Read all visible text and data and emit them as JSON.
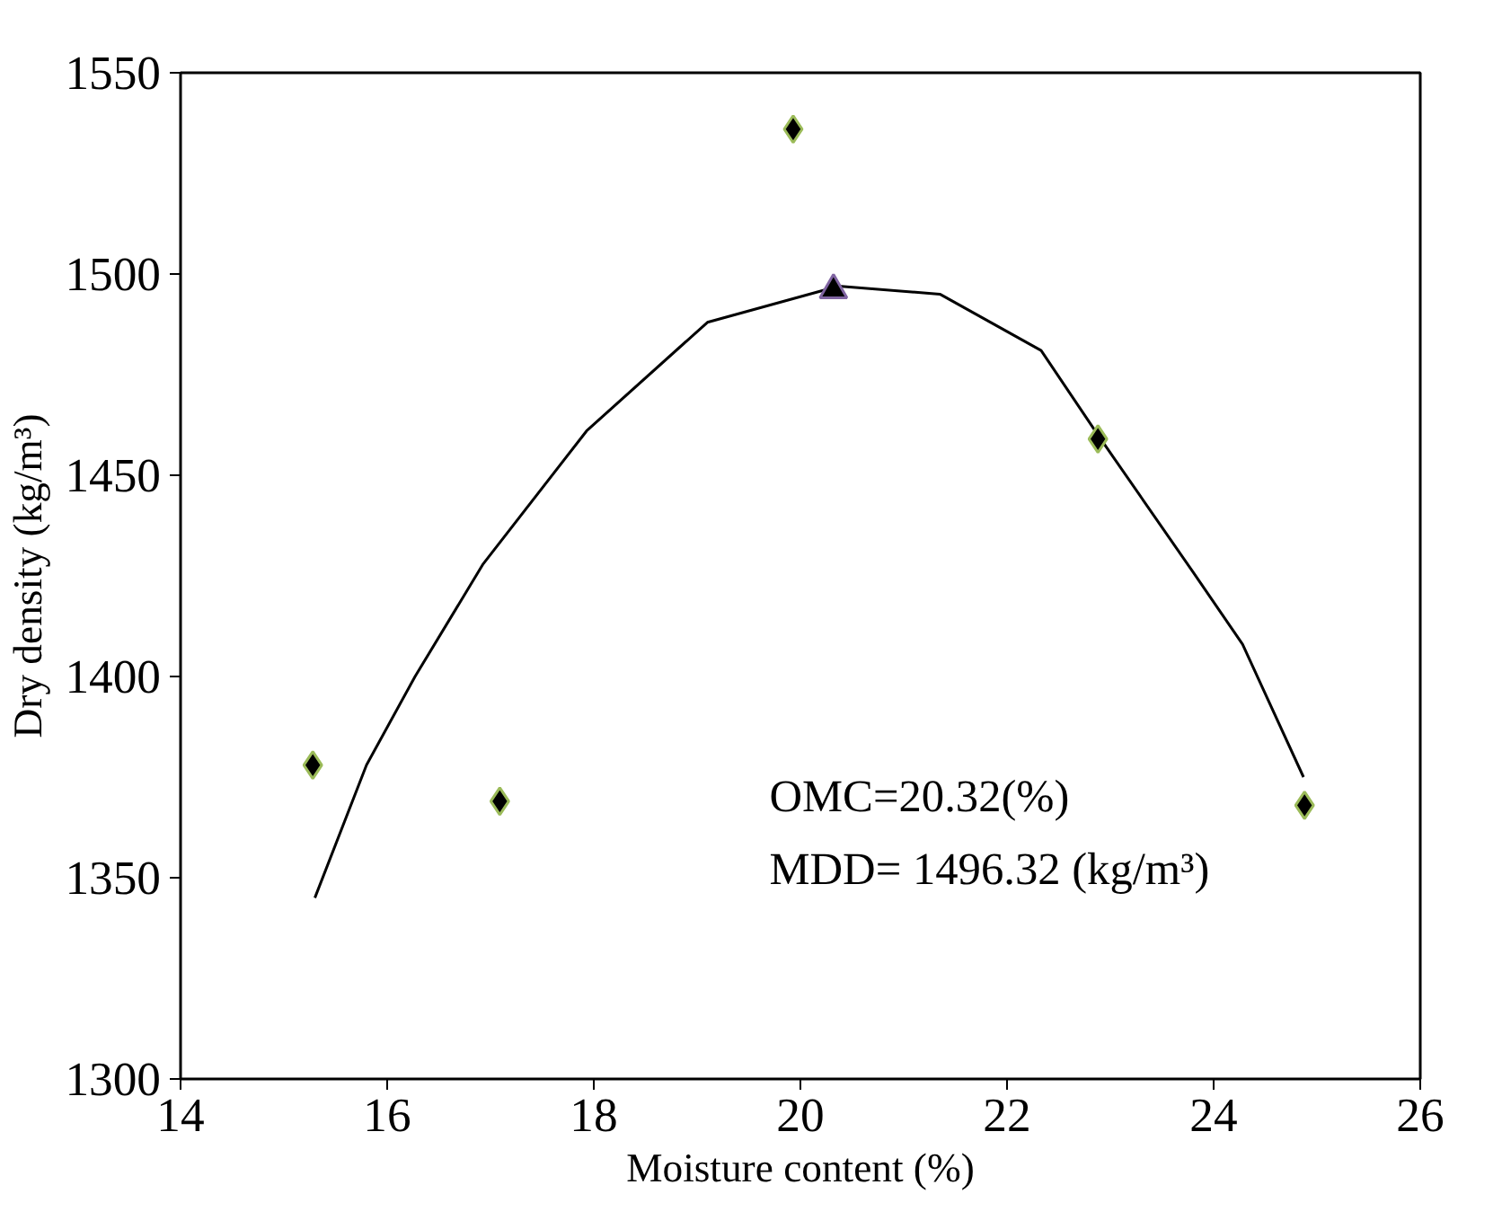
{
  "chart_data": {
    "type": "scatter",
    "xlabel": "Moisture content (%)",
    "ylabel": "Dry density (kg/m³)",
    "xlim": [
      14,
      26
    ],
    "xticks": [
      14,
      16,
      18,
      20,
      22,
      24,
      26
    ],
    "ylim": [
      1300,
      1550
    ],
    "yticks": [
      1300,
      1350,
      1400,
      1450,
      1500,
      1550
    ],
    "grid": false,
    "series": [
      {
        "type": "line",
        "color": "#000000",
        "marker": "none",
        "line_style": "solid",
        "x": [
          15.3,
          15.8,
          16.27,
          16.93,
          17.93,
          19.1,
          20.37,
          21.35,
          22.33,
          22.88,
          23.8,
          24.28,
          24.87
        ],
        "values": [
          1345,
          1378,
          1400,
          1428,
          1461,
          1488,
          1497,
          1495,
          1481,
          1460,
          1426,
          1408,
          1375
        ]
      },
      {
        "color": "#000000",
        "marker": "diamond",
        "x": [
          15.28,
          17.09,
          19.93,
          22.88,
          24.88
        ],
        "values": [
          1378,
          1369,
          1536,
          1459,
          1368
        ]
      },
      {
        "color": "#000000",
        "marker": "triangle",
        "x": [
          20.32
        ],
        "values": [
          1496
        ]
      }
    ],
    "annotations": [
      "OMC=20.32(%)",
      "MDD= 1496.32 (kg/m³)"
    ]
  }
}
